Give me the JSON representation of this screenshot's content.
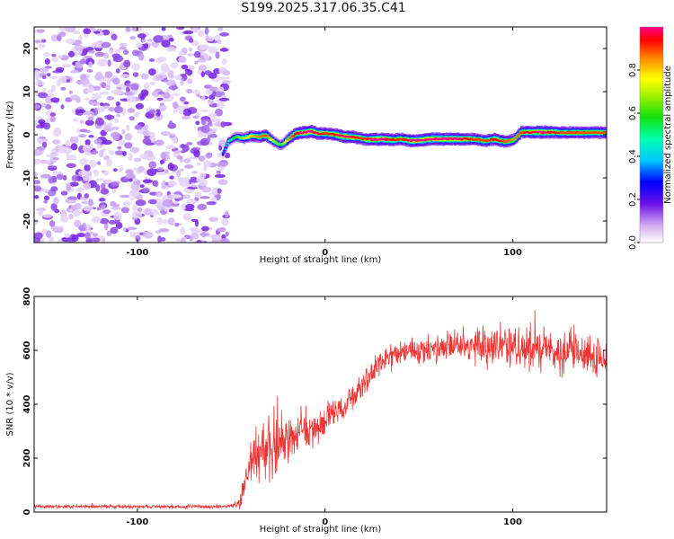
{
  "page_title": "S199.2025.317.06.35.C41",
  "chart_data": [
    {
      "type": "heatmap",
      "title": "S199.2025.317.06.35.C41",
      "xlabel": "Height of straight line (km)",
      "ylabel": "Frequency (Hz)",
      "xlim": [
        -155,
        150
      ],
      "ylim": [
        -25,
        25
      ],
      "xticks": [
        -100,
        0,
        100
      ],
      "yticks": [
        -20,
        -10,
        0,
        10,
        20
      ],
      "x_tick_labels": [
        "-100",
        "0",
        "100"
      ],
      "y_tick_labels": [
        "-20",
        "-10",
        "0",
        "10",
        "20"
      ],
      "colorbar": {
        "label": "Normalized spectral amplitude",
        "range": [
          0,
          1
        ],
        "ticks": [
          0.0,
          0.2,
          0.4,
          0.6,
          0.8
        ],
        "tick_labels": [
          "0.0",
          "0.2",
          "0.4",
          "0.6",
          "0.8"
        ]
      },
      "noise_region_x": [
        -155,
        -55
      ],
      "ridge": {
        "x": [
          -55,
          -52,
          -48,
          -44,
          -40,
          -36,
          -32,
          -28,
          -24,
          -20,
          -16,
          -12,
          -8,
          -4,
          0,
          5,
          10,
          15,
          20,
          25,
          30,
          35,
          40,
          45,
          50,
          55,
          60,
          65,
          70,
          75,
          80,
          85,
          90,
          95,
          100,
          104,
          108,
          115,
          120,
          125,
          130,
          135,
          140,
          145,
          150
        ],
        "freq": [
          -4.5,
          -1.5,
          -0.5,
          -0.8,
          -0.3,
          -0.5,
          -0.2,
          -1.5,
          -2.5,
          -1.0,
          0.3,
          0.5,
          0.8,
          0.3,
          0.3,
          0.0,
          -0.4,
          -0.6,
          -1.0,
          -1.1,
          -1.0,
          -1.2,
          -1.0,
          -1.4,
          -1.3,
          -1.0,
          -1.0,
          -1.0,
          -1.0,
          -1.0,
          -1.1,
          -1.4,
          -1.0,
          -1.6,
          -1.2,
          0.6,
          0.6,
          0.6,
          0.6,
          0.5,
          0.5,
          0.5,
          0.5,
          0.5,
          0.5
        ],
        "amp": [
          0.3,
          0.5,
          0.6,
          0.7,
          0.8,
          0.85,
          0.9,
          0.7,
          0.6,
          0.85,
          0.95,
          1.0,
          1.0,
          0.95,
          0.9,
          0.95,
          1.0,
          0.95,
          0.9,
          1.0,
          1.0,
          0.95,
          0.9,
          1.0,
          1.0,
          1.0,
          1.0,
          1.0,
          1.0,
          0.95,
          0.9,
          0.9,
          0.95,
          0.9,
          0.85,
          0.9,
          0.95,
          1.0,
          0.95,
          0.9,
          0.9,
          0.9,
          0.9,
          0.9,
          0.9
        ]
      }
    },
    {
      "type": "line",
      "xlabel": "Height of straight line (km)",
      "ylabel": "SNR (10 * v/v)",
      "xlim": [
        -155,
        150
      ],
      "ylim": [
        0,
        800
      ],
      "xticks": [
        -100,
        0,
        100
      ],
      "yticks": [
        0,
        200,
        400,
        600,
        800
      ],
      "x_tick_labels": [
        "-100",
        "0",
        "100"
      ],
      "y_tick_labels": [
        "0",
        "200",
        "400",
        "600",
        "800"
      ],
      "series": [
        {
          "name": "SNR",
          "color": "#ee3333",
          "x": [
            -155,
            -100,
            -60,
            -50,
            -45,
            -42,
            -40,
            -38,
            -35,
            -30,
            -25,
            -20,
            -15,
            -10,
            -5,
            0,
            5,
            10,
            15,
            20,
            25,
            30,
            40,
            50,
            60,
            70,
            80,
            90,
            100,
            110,
            120,
            130,
            140,
            150
          ],
          "mean": [
            20,
            20,
            20,
            22,
            40,
            120,
            170,
            200,
            230,
            240,
            250,
            270,
            290,
            300,
            320,
            340,
            360,
            390,
            430,
            480,
            520,
            560,
            590,
            600,
            600,
            610,
            620,
            620,
            620,
            610,
            600,
            590,
            580,
            560
          ],
          "spread": [
            10,
            10,
            10,
            12,
            40,
            90,
            120,
            140,
            150,
            150,
            150,
            140,
            130,
            120,
            100,
            80,
            80,
            80,
            70,
            70,
            70,
            70,
            70,
            80,
            80,
            90,
            100,
            110,
            120,
            110,
            110,
            110,
            110,
            110
          ]
        }
      ]
    }
  ]
}
